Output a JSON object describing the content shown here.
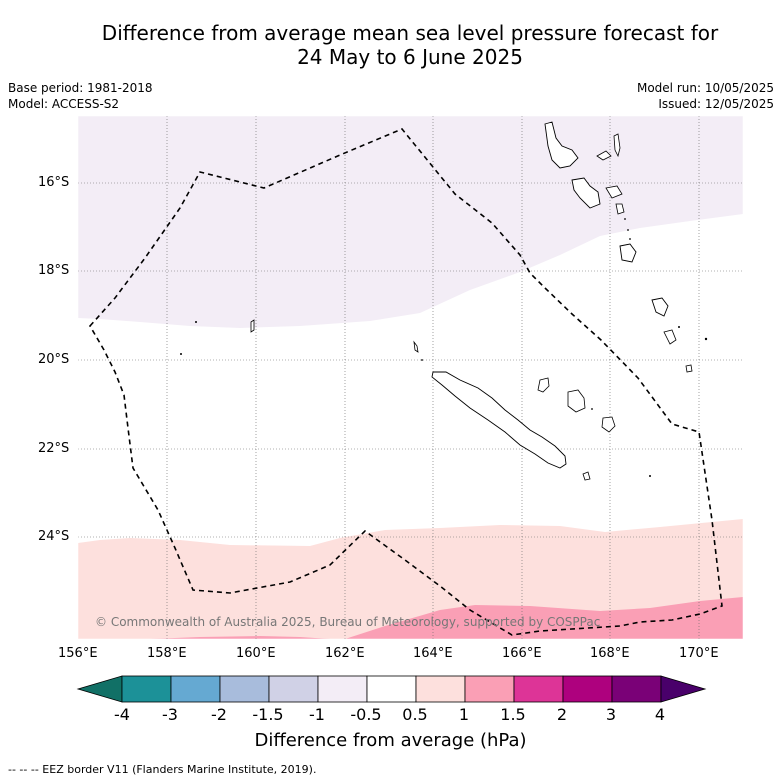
{
  "title_line1": "Difference from average mean sea level pressure forecast for",
  "title_line2": "24 May to 6 June 2025",
  "base_period": "Base period: 1981-2018",
  "model": "Model: ACCESS-S2",
  "model_run": "Model run: 10/05/2025",
  "issued": "Issued: 12/05/2025",
  "lat_labels": [
    "16°S",
    "18°S",
    "20°S",
    "22°S",
    "24°S"
  ],
  "lon_labels": [
    "156°E",
    "158°E",
    "160°E",
    "162°E",
    "164°E",
    "166°E",
    "168°E",
    "170°E"
  ],
  "copyright": "© Commonwealth of Australia 2025, Bureau of Meteorology, supported by COSPPac",
  "colorbar": {
    "label": "Difference from average (hPa)",
    "ticks": [
      "-4",
      "-3",
      "-2",
      "-1.5",
      "-1",
      "-0.5",
      "0.5",
      "1",
      "1.5",
      "2",
      "3",
      "4"
    ],
    "colors": [
      "#117066",
      "#1c9198",
      "#65a9d2",
      "#a8bcdc",
      "#d0d1e6",
      "#f3edf6",
      "#ffffff",
      "#fde0dd",
      "#fa9fb5",
      "#dd3497",
      "#ae017e",
      "#7a0177",
      "#49006a"
    ]
  },
  "footnote": "--  --  -- EEZ border V11 (Flanders Marine Institute, 2019)."
}
